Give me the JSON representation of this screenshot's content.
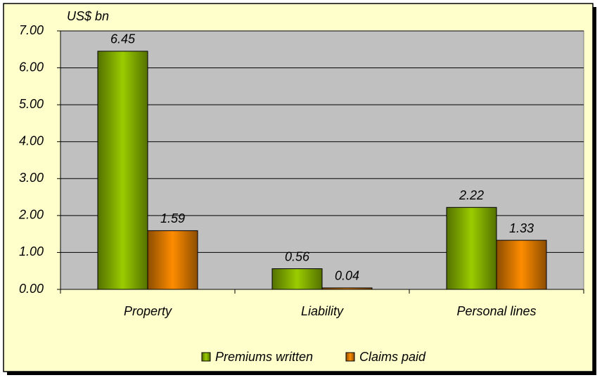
{
  "chart_data": {
    "type": "bar",
    "y_axis_label": "US$ bn",
    "categories": [
      "Property",
      "Liability",
      "Personal lines"
    ],
    "series": [
      {
        "name": "Premiums written",
        "color": "#99cc00",
        "values": [
          6.45,
          0.56,
          2.22
        ]
      },
      {
        "name": "Claims paid",
        "color": "#ff8c00",
        "values": [
          1.59,
          0.04,
          1.33
        ]
      }
    ],
    "ylim": [
      0,
      7
    ],
    "yticks": [
      {
        "value": 0,
        "label": "0.00"
      },
      {
        "value": 1,
        "label": "1.00"
      },
      {
        "value": 2,
        "label": "2.00"
      },
      {
        "value": 3,
        "label": "3.00"
      },
      {
        "value": 4,
        "label": "4.00"
      },
      {
        "value": 5,
        "label": "5.00"
      },
      {
        "value": 6,
        "label": "6.00"
      },
      {
        "value": 7,
        "label": "7.00"
      }
    ],
    "grid": true,
    "legend": "bottom"
  }
}
